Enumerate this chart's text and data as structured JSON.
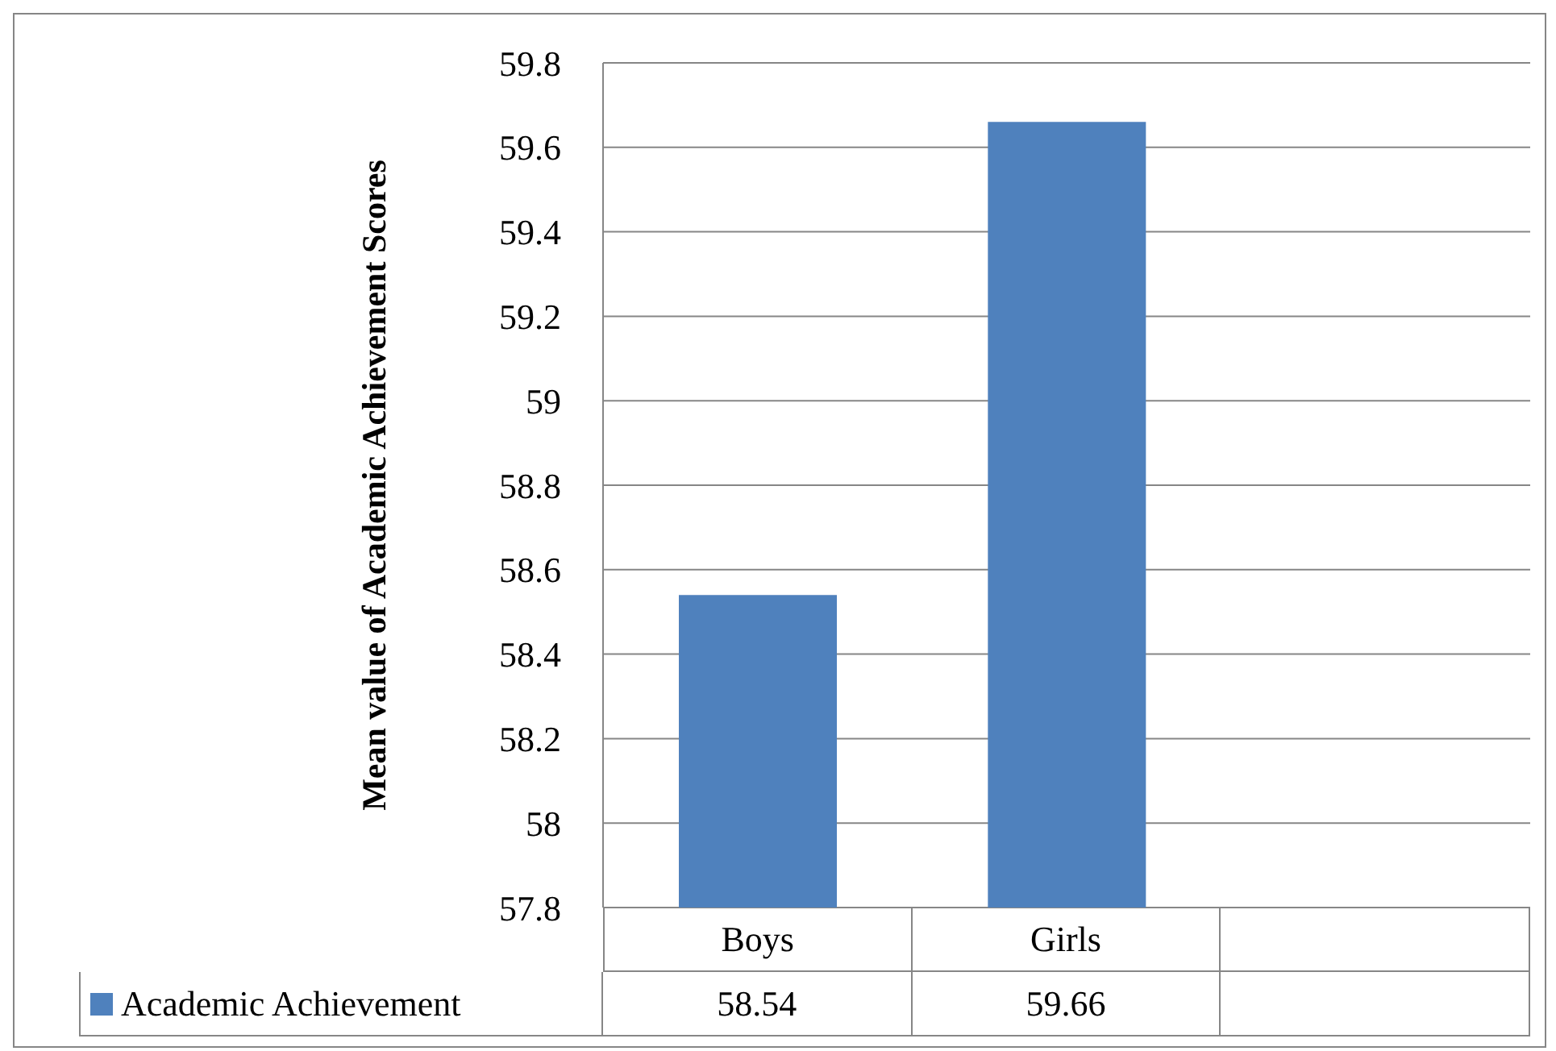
{
  "chart_data": {
    "type": "bar",
    "ylabel": "Mean value of Academic Achievement Scores",
    "categories": [
      "Boys",
      "Girls",
      null
    ],
    "series": [
      {
        "name": "Academic Achievement",
        "color": "#4f81bd",
        "values": [
          58.54,
          59.66,
          null
        ]
      }
    ],
    "ylim": [
      57.8,
      59.8
    ],
    "yticks": [
      57.8,
      58,
      58.2,
      58.4,
      58.6,
      58.8,
      59,
      59.2,
      59.4,
      59.6,
      59.8
    ],
    "grid": "y",
    "data_labels": true,
    "legend": "bottom left"
  }
}
